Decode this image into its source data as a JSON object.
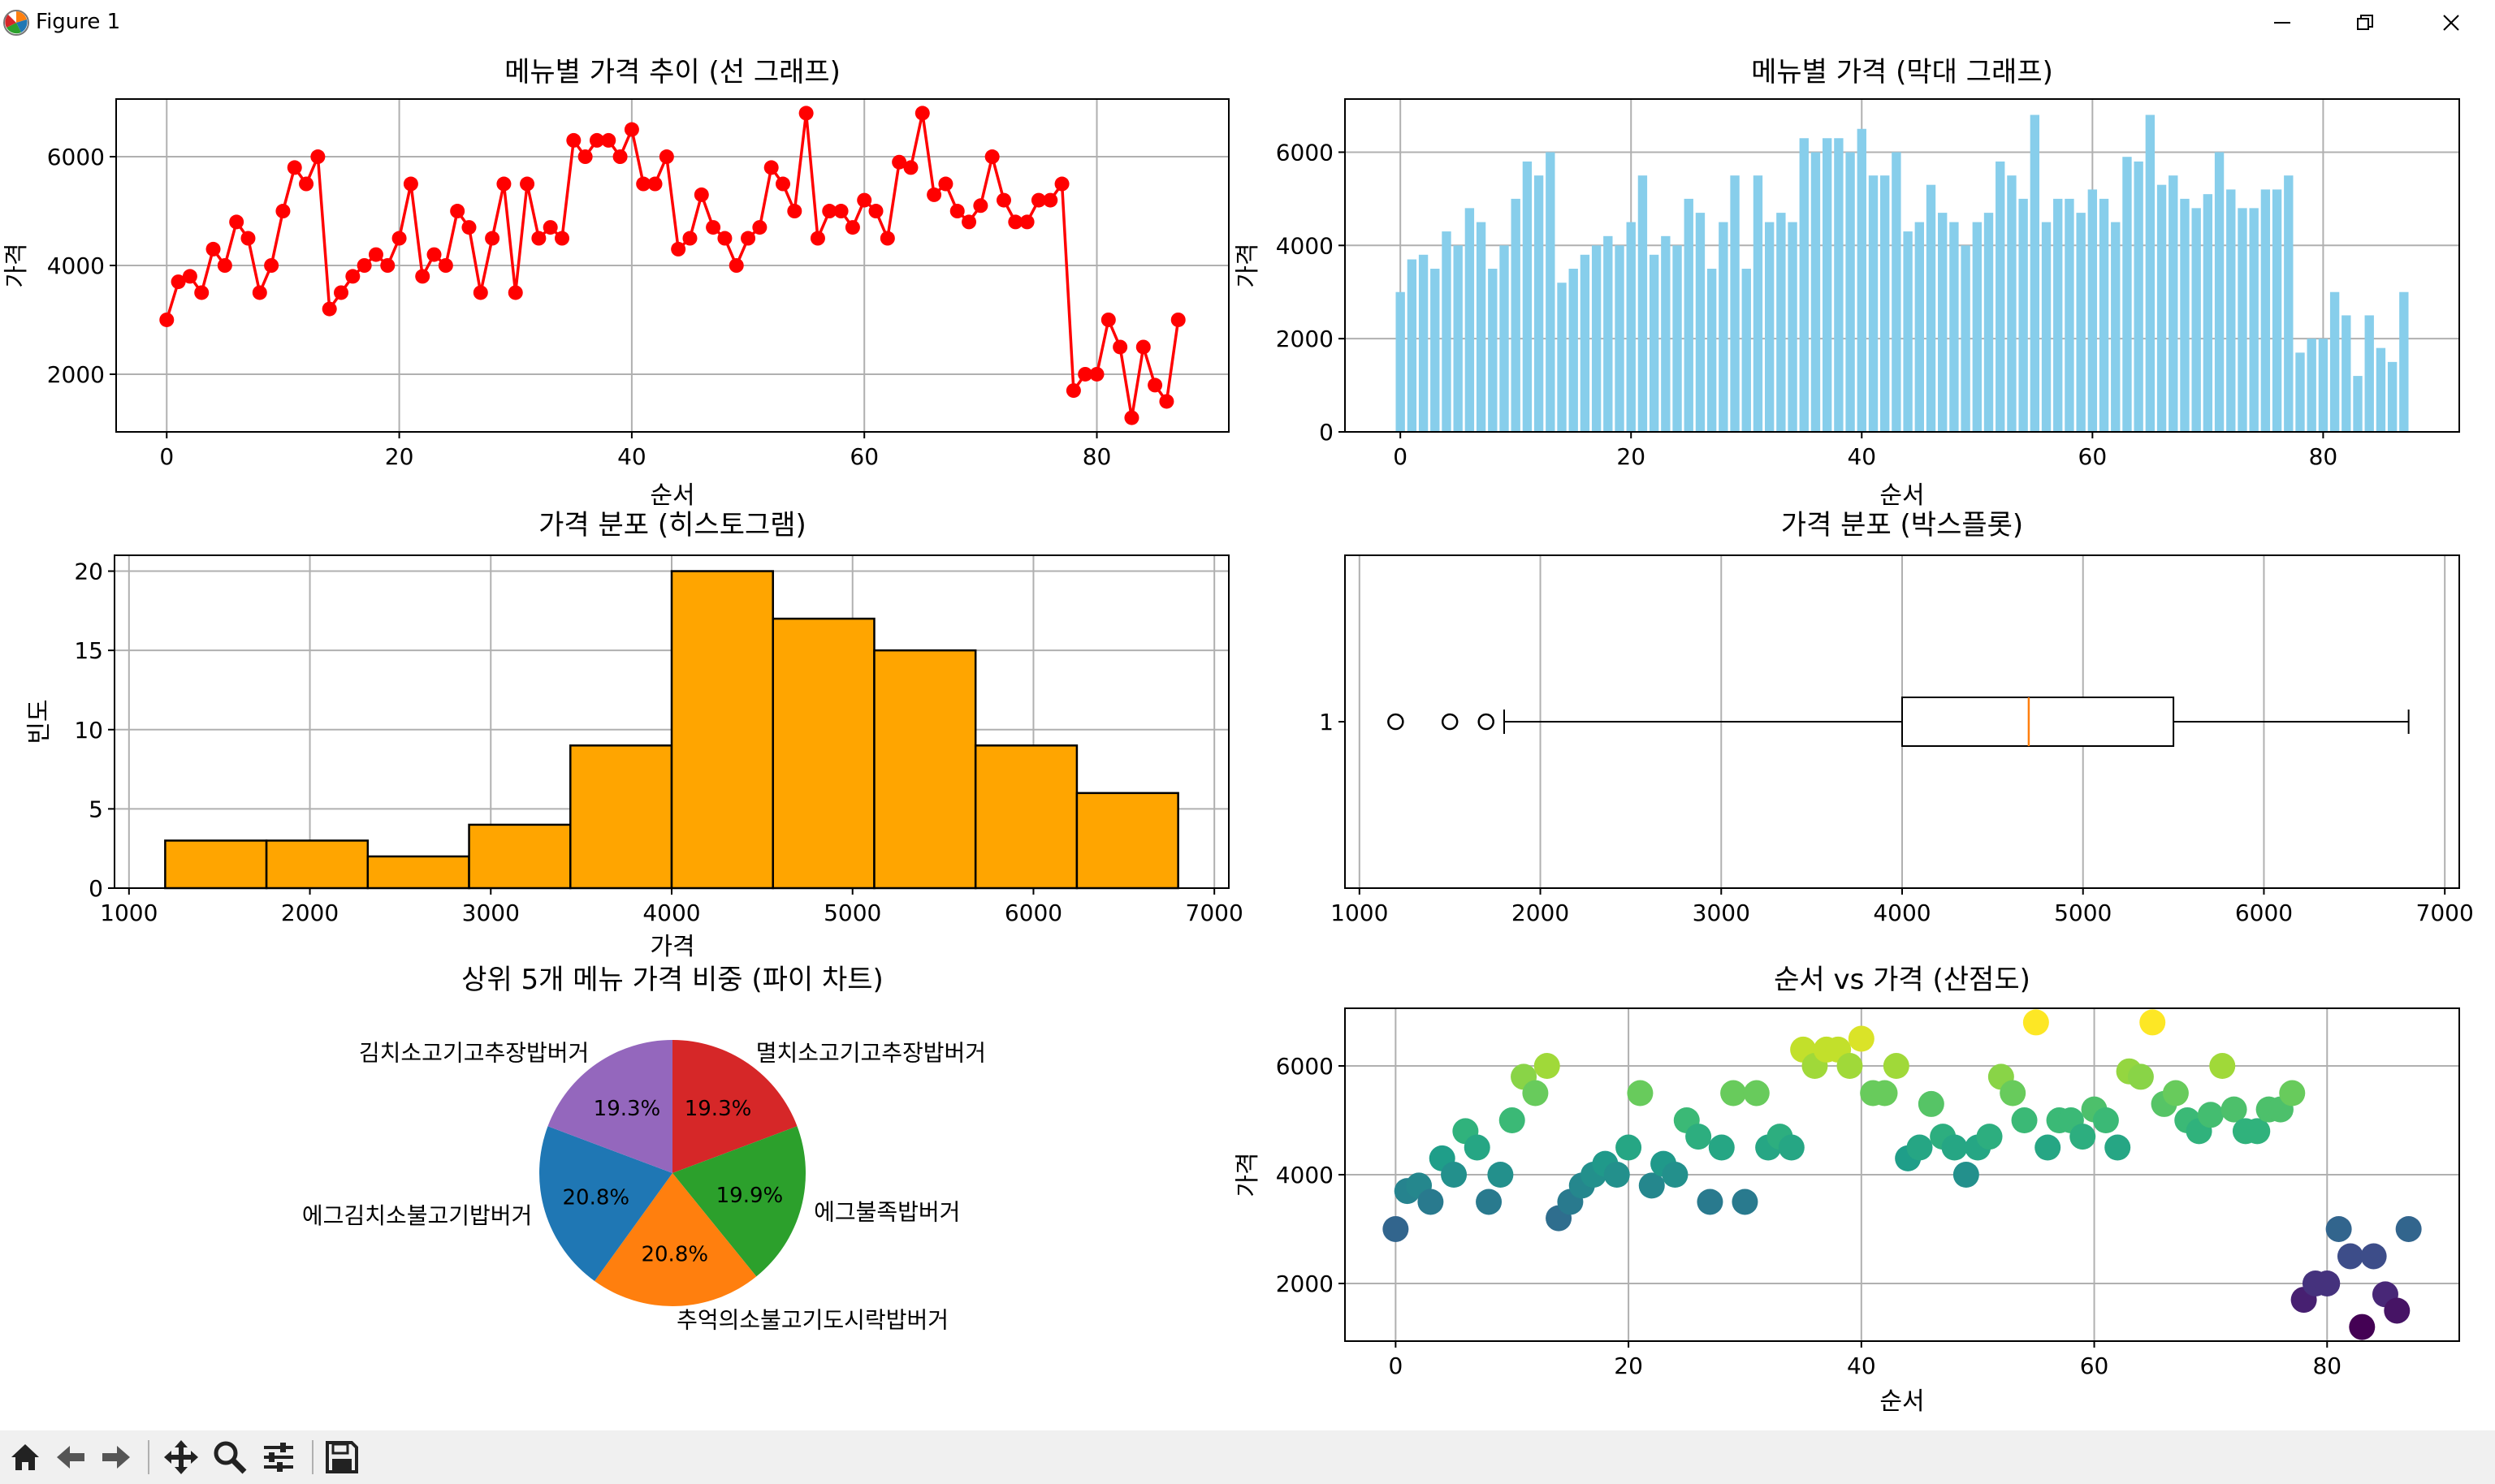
{
  "window": {
    "title": "Figure 1",
    "minimize_icon": "minimize-icon",
    "restore_icon": "restore-icon",
    "close_icon": "close-icon"
  },
  "toolbar": {
    "icons": [
      "home-icon",
      "back-icon",
      "forward-icon",
      "pan-icon",
      "zoom-icon",
      "configure-icon",
      "save-icon"
    ]
  },
  "colors": {
    "line": "#ff0000",
    "bar": "#87ceeb",
    "hist": "#ffa500",
    "median": "#ff7f0e",
    "grid": "#b0b0b0"
  },
  "chart_data": [
    {
      "type": "line",
      "title": "메뉴별 가격 추이 (선 그래프)",
      "xlabel": "순서",
      "ylabel": "가격",
      "xlim": [
        -4.35,
        91.35
      ],
      "ylim": [
        940,
        7060
      ],
      "xticks": [
        0,
        20,
        40,
        60,
        80
      ],
      "yticks": [
        2000,
        4000,
        6000
      ],
      "grid": true,
      "color": "#ff0000",
      "marker": "circle",
      "x_start": 0,
      "values": [
        3000,
        3700,
        3800,
        3500,
        4300,
        4000,
        4800,
        4500,
        3500,
        4000,
        5000,
        5800,
        5500,
        6000,
        3200,
        3500,
        3800,
        4000,
        4200,
        4000,
        4500,
        5500,
        3800,
        4200,
        4000,
        5000,
        4700,
        3500,
        4500,
        5500,
        3500,
        5500,
        4500,
        4700,
        4500,
        6300,
        6000,
        6300,
        6300,
        6000,
        6500,
        5500,
        5500,
        6000,
        4300,
        4500,
        5300,
        4700,
        4500,
        4000,
        4500,
        4700,
        5800,
        5500,
        5000,
        6800,
        4500,
        5000,
        5000,
        4700,
        5200,
        5000,
        4500,
        5900,
        5800,
        6800,
        5300,
        5500,
        5000,
        4800,
        5100,
        6000,
        5200,
        4800,
        4800,
        5200,
        5200,
        5500,
        1700,
        2000,
        2000,
        3000,
        2500,
        1200,
        2500,
        1800,
        1500,
        3000
      ]
    },
    {
      "type": "bar",
      "title": "메뉴별 가격 (막대 그래프)",
      "xlabel": "순서",
      "ylabel": "가격",
      "xlim": [
        -4.8,
        91.8
      ],
      "ylim": [
        0,
        7140
      ],
      "xticks": [
        0,
        20,
        40,
        60,
        80
      ],
      "yticks": [
        0,
        2000,
        4000,
        6000
      ],
      "grid": true,
      "color": "#87ceeb",
      "x_start": 0,
      "same_values_as": "line"
    },
    {
      "type": "bar",
      "subtype": "histogram",
      "title": "가격 분포 (히스토그램)",
      "xlabel": "가격",
      "ylabel": "빈도",
      "xlim": [
        920,
        7080
      ],
      "ylim": [
        0,
        21
      ],
      "xticks": [
        1000,
        2000,
        3000,
        4000,
        5000,
        6000,
        7000
      ],
      "yticks": [
        0,
        5,
        10,
        15,
        20
      ],
      "grid": true,
      "color": "#ffa500",
      "bin_edges": [
        1200,
        1760,
        2320,
        2880,
        3440,
        4000,
        4560,
        5120,
        5680,
        6240,
        6800
      ],
      "counts": [
        3,
        3,
        2,
        4,
        9,
        20,
        17,
        15,
        9,
        6
      ]
    },
    {
      "type": "box",
      "title": "가격 분포 (박스플롯)",
      "xlim": [
        920,
        7080
      ],
      "xticks": [
        1000,
        2000,
        3000,
        4000,
        5000,
        6000,
        7000
      ],
      "yticks": [
        1
      ],
      "grid": true,
      "whisker_low": 1800,
      "q1": 4000,
      "median": 4700,
      "q3": 5500,
      "whisker_high": 6800,
      "outliers": [
        1200,
        1500,
        1700
      ]
    },
    {
      "type": "pie",
      "title": "상위 5개 메뉴 가격 비중 (파이 차트)",
      "slices": [
        {
          "label": "멸치소고기고추장밥버거",
          "pct": "19.3%",
          "value": 19.3,
          "color": "#d62728"
        },
        {
          "label": "에그불족밥버거",
          "pct": "19.9%",
          "value": 19.9,
          "color": "#2ca02c"
        },
        {
          "label": "추억의소불고기도시락밥버거",
          "pct": "20.8%",
          "value": 20.8,
          "color": "#ff7f0e"
        },
        {
          "label": "에그김치소불고기밥버거",
          "pct": "20.8%",
          "value": 20.8,
          "color": "#1f77b4"
        },
        {
          "label": "김치소고기고추장밥버거",
          "pct": "19.3%",
          "value": 19.3,
          "color": "#9467bd"
        }
      ]
    },
    {
      "type": "scatter",
      "title": "순서 vs 가격 (산점도)",
      "xlabel": "순서",
      "ylabel": "가격",
      "xlim": [
        -4.35,
        91.35
      ],
      "ylim": [
        940,
        7060
      ],
      "xticks": [
        0,
        20,
        40,
        60,
        80
      ],
      "yticks": [
        2000,
        4000,
        6000
      ],
      "grid": true,
      "colormap": "viridis",
      "x_start": 0,
      "same_values_as": "line"
    }
  ]
}
